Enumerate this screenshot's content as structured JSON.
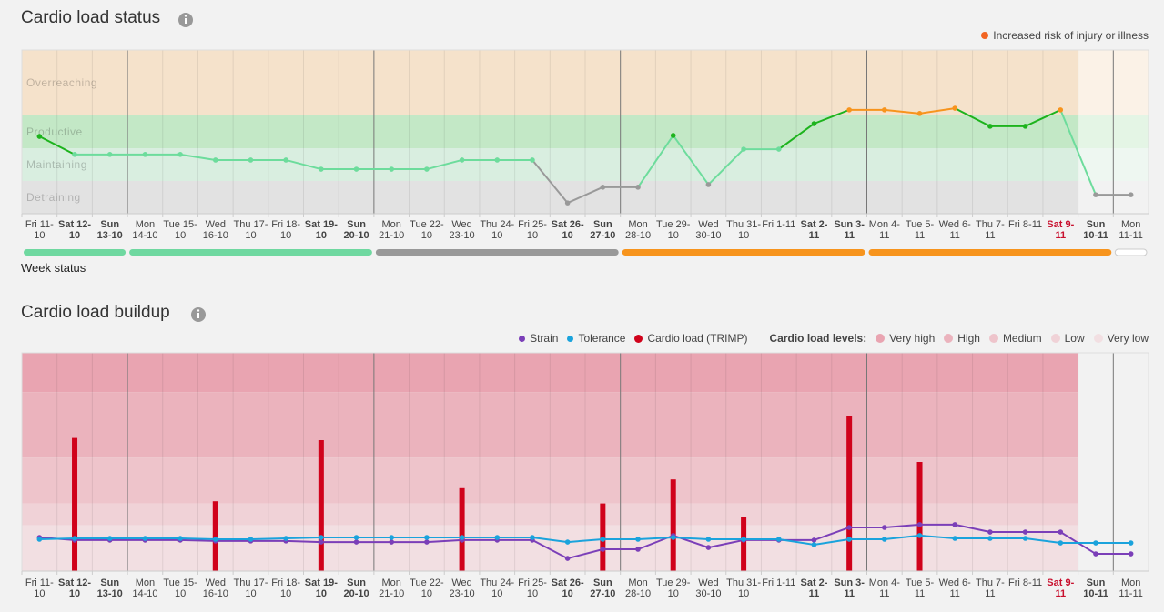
{
  "chart_data": [
    {
      "type": "zone_line",
      "title": "Cardio load status",
      "categories": [
        "Fri 11-10",
        "Sat 12-10",
        "Sun 13-10",
        "Mon 14-10",
        "Tue 15-10",
        "Wed 16-10",
        "Thu 17-10",
        "Fri 18-10",
        "Sat 19-10",
        "Sun 20-10",
        "Mon 21-10",
        "Tue 22-10",
        "Wed 23-10",
        "Thu 24-10",
        "Fri 25-10",
        "Sat 26-10",
        "Sun 27-10",
        "Mon 28-10",
        "Tue 29-10",
        "Wed 30-10",
        "Thu 31-10",
        "Fri 1-11",
        "Sat 2-11",
        "Sun 3-11",
        "Mon 4-11",
        "Tue 5-11",
        "Wed 6-11",
        "Thu 7-11",
        "Fri 8-11",
        "Sat 9-11",
        "Sun 10-11",
        "Mon 11-11"
      ],
      "values": [
        2.36,
        1.81,
        1.81,
        1.81,
        1.81,
        1.64,
        1.64,
        1.64,
        1.36,
        1.36,
        1.36,
        1.36,
        1.64,
        1.64,
        1.64,
        0.33,
        0.81,
        0.81,
        2.39,
        0.89,
        1.97,
        1.97,
        2.75,
        3.17,
        3.17,
        3.06,
        3.22,
        2.67,
        2.67,
        3.17,
        0.58,
        0.58
      ],
      "ylim": [
        0,
        5
      ],
      "zones": [
        {
          "name": "Overreaching",
          "from": 3,
          "to": 5,
          "color": "#f5e2cb",
          "line_color": "#f7941d"
        },
        {
          "name": "Productive",
          "from": 2,
          "to": 3,
          "color": "#c3e8c6",
          "line_color": "#1db31d"
        },
        {
          "name": "Maintaining",
          "from": 1,
          "to": 2,
          "color": "#d9eee0",
          "line_color": "#6ddc9c"
        },
        {
          "name": "Detraining",
          "from": 0,
          "to": 1,
          "color": "#e2e2e2",
          "line_color": "#999999"
        }
      ],
      "legend": {
        "label": "Increased risk of injury or illness",
        "color": "#f26522"
      },
      "week_status": {
        "label": "Week status",
        "weeks": [
          {
            "from": 0,
            "to": 2,
            "color": "#6fd8a0"
          },
          {
            "from": 3,
            "to": 9,
            "color": "#6fd8a0"
          },
          {
            "from": 10,
            "to": 16,
            "color": "#999999"
          },
          {
            "from": 17,
            "to": 23,
            "color": "#f7941d"
          },
          {
            "from": 24,
            "to": 30,
            "color": "#f7941d"
          },
          {
            "from": 31,
            "to": 31,
            "color": "#ffffff"
          }
        ]
      },
      "bold_categories": [
        1,
        2,
        8,
        9,
        15,
        16,
        22,
        23,
        29,
        30
      ],
      "today": 29,
      "today_color": "#c8102e",
      "week_starts": [
        3,
        10,
        17,
        24,
        31
      ],
      "future_from": 30
    },
    {
      "type": "combo",
      "title": "Cardio load buildup",
      "categories": [
        "Fri 11-10",
        "Sat 12-10",
        "Sun 13-10",
        "Mon 14-10",
        "Tue 15-10",
        "Wed 16-10",
        "Thu 17-10",
        "Fri 18-10",
        "Sat 19-10",
        "Sun 20-10",
        "Mon 21-10",
        "Tue 22-10",
        "Wed 23-10",
        "Thu 24-10",
        "Fri 25-10",
        "Sat 26-10",
        "Sun 27-10",
        "Mon 28-10",
        "Tue 29-10",
        "Wed 30-10",
        "Thu 31-10",
        "Fri 1-11",
        "Sat 2-11",
        "Sun 3-11",
        "Mon 4-11",
        "Tue 5-11",
        "Wed 6-11",
        "Thu 7-11",
        "Fri 8-11",
        "Sat 9-11",
        "Sun 10-11",
        "Mon 11-11"
      ],
      "ylim": [
        0,
        100
      ],
      "series": [
        {
          "name": "Strain",
          "type": "line",
          "color": "#7b3fb8",
          "values": [
            15.4,
            14.2,
            14.2,
            14.2,
            14.2,
            13.8,
            13.8,
            13.8,
            13.3,
            13.3,
            13.3,
            13.3,
            14.2,
            14.2,
            14.2,
            5.8,
            10,
            10,
            16.3,
            10.8,
            14.2,
            14.2,
            14.2,
            20,
            20,
            21.3,
            21.3,
            17.9,
            17.9,
            17.9,
            7.9,
            7.9
          ]
        },
        {
          "name": "Tolerance",
          "type": "line",
          "color": "#1aa3dc",
          "values": [
            14.6,
            15,
            15,
            15,
            15,
            14.6,
            14.6,
            15,
            15.4,
            15.4,
            15.4,
            15.4,
            15.4,
            15.4,
            15.4,
            13.3,
            14.6,
            14.6,
            15.4,
            14.6,
            14.6,
            14.6,
            12.1,
            14.6,
            14.6,
            16.3,
            15,
            15,
            15,
            12.9,
            12.9,
            12.9
          ]
        },
        {
          "name": "Cardio load (TRIMP)",
          "type": "bar",
          "color": "#d0021b",
          "values": [
            null,
            61,
            null,
            null,
            null,
            32,
            null,
            null,
            60,
            null,
            null,
            null,
            38,
            null,
            null,
            null,
            31,
            null,
            42,
            null,
            25,
            null,
            null,
            71,
            null,
            50,
            null,
            null,
            null,
            null,
            null,
            null
          ]
        }
      ],
      "levels_label": "Cardio load levels:",
      "levels": [
        {
          "name": "Very high",
          "from": 82,
          "to": 100,
          "color": "#e9a4b1"
        },
        {
          "name": "High",
          "from": 52,
          "to": 82,
          "color": "#ebb3bd"
        },
        {
          "name": "Medium",
          "from": 31,
          "to": 52,
          "color": "#eec4cb"
        },
        {
          "name": "Low",
          "from": 21,
          "to": 31,
          "color": "#f0d2d7"
        },
        {
          "name": "Very low",
          "from": 0,
          "to": 21,
          "color": "#f2dfe2"
        }
      ],
      "bold_categories": [
        1,
        2,
        8,
        9,
        15,
        16,
        22,
        23,
        29,
        30
      ],
      "today": 29,
      "today_color": "#c8102e",
      "week_starts": [
        3,
        10,
        17,
        24,
        31
      ],
      "future_from": 30
    }
  ]
}
